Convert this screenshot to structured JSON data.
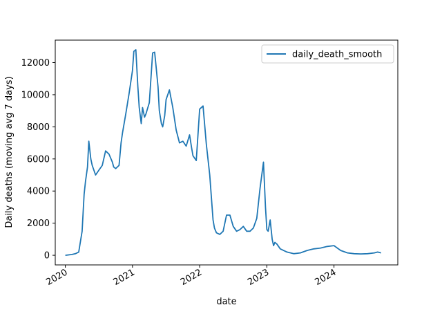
{
  "chart_data": {
    "type": "line",
    "title": "",
    "xlabel": "date",
    "ylabel": "Daily deaths (moving avg 7 days)",
    "xlim": [
      2019.85,
      2024.95
    ],
    "ylim": [
      -600,
      13400
    ],
    "x_ticks": [
      {
        "value": 2020,
        "label": "2020"
      },
      {
        "value": 2021,
        "label": "2021"
      },
      {
        "value": 2022,
        "label": "2022"
      },
      {
        "value": 2023,
        "label": "2023"
      },
      {
        "value": 2024,
        "label": "2024"
      }
    ],
    "y_ticks": [
      {
        "value": 0,
        "label": "0"
      },
      {
        "value": 2000,
        "label": "2000"
      },
      {
        "value": 4000,
        "label": "4000"
      },
      {
        "value": 6000,
        "label": "6000"
      },
      {
        "value": 8000,
        "label": "8000"
      },
      {
        "value": 10000,
        "label": "10000"
      },
      {
        "value": 12000,
        "label": "12000"
      }
    ],
    "grid": false,
    "legend": {
      "position": "top-right",
      "entries": [
        "daily_death_smooth"
      ]
    },
    "series": [
      {
        "name": "daily_death_smooth",
        "color": "#1f77b4",
        "x": [
          2020.0,
          2020.1,
          2020.15,
          2020.2,
          2020.25,
          2020.28,
          2020.3,
          2020.33,
          2020.35,
          2020.38,
          2020.4,
          2020.45,
          2020.5,
          2020.55,
          2020.6,
          2020.65,
          2020.7,
          2020.72,
          2020.75,
          2020.8,
          2020.83,
          2020.85,
          2020.9,
          2020.95,
          2021.0,
          2021.02,
          2021.05,
          2021.08,
          2021.1,
          2021.13,
          2021.15,
          2021.18,
          2021.2,
          2021.25,
          2021.3,
          2021.33,
          2021.35,
          2021.38,
          2021.4,
          2021.43,
          2021.45,
          2021.48,
          2021.5,
          2021.55,
          2021.6,
          2021.65,
          2021.7,
          2021.75,
          2021.8,
          2021.85,
          2021.88,
          2021.9,
          2021.95,
          2022.0,
          2022.05,
          2022.1,
          2022.15,
          2022.18,
          2022.2,
          2022.22,
          2022.25,
          2022.3,
          2022.35,
          2022.4,
          2022.45,
          2022.5,
          2022.55,
          2022.6,
          2022.65,
          2022.7,
          2022.75,
          2022.8,
          2022.85,
          2022.9,
          2022.95,
          2022.98,
          2023.0,
          2023.02,
          2023.05,
          2023.08,
          2023.1,
          2023.12,
          2023.15,
          2023.2,
          2023.3,
          2023.4,
          2023.5,
          2023.6,
          2023.7,
          2023.8,
          2023.9,
          2024.0,
          2024.1,
          2024.2,
          2024.3,
          2024.4,
          2024.5,
          2024.6,
          2024.65,
          2024.7
        ],
        "y": [
          0,
          50,
          100,
          200,
          1500,
          3800,
          4600,
          5500,
          7100,
          6000,
          5600,
          5000,
          5300,
          5600,
          6500,
          6300,
          5800,
          5500,
          5400,
          5600,
          7000,
          7600,
          8800,
          10100,
          11500,
          12700,
          12800,
          10500,
          9200,
          8200,
          9200,
          8600,
          8800,
          9500,
          12600,
          12650,
          11800,
          10500,
          9000,
          8200,
          8000,
          8700,
          9700,
          10300,
          9200,
          7800,
          7000,
          7100,
          6800,
          7500,
          6700,
          6200,
          5900,
          9100,
          9300,
          6900,
          5000,
          3300,
          2200,
          1700,
          1400,
          1300,
          1500,
          2500,
          2500,
          1800,
          1500,
          1600,
          1800,
          1500,
          1500,
          1700,
          2300,
          4200,
          5800,
          3000,
          1600,
          1500,
          2200,
          1000,
          600,
          800,
          700,
          400,
          200,
          100,
          150,
          300,
          400,
          450,
          550,
          600,
          300,
          150,
          100,
          80,
          100,
          150,
          200,
          150
        ]
      }
    ]
  }
}
